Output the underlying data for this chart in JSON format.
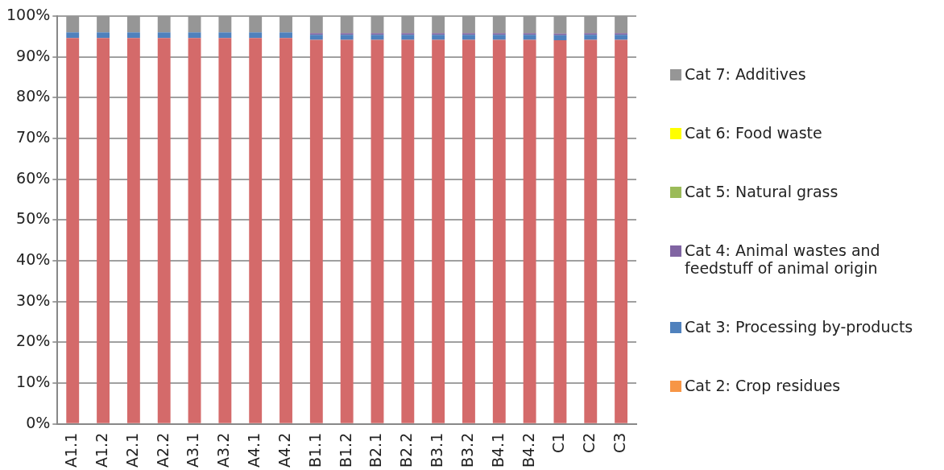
{
  "chart_data": {
    "type": "bar",
    "stacked": true,
    "categories": [
      "A1.1",
      "A1.2",
      "A2.1",
      "A2.2",
      "A3.1",
      "A3.2",
      "A4.1",
      "A4.2",
      "B1.1",
      "B1.2",
      "B2.1",
      "B2.2",
      "B3.1",
      "B3.2",
      "B4.1",
      "B4.2",
      "C1",
      "C2",
      "C3"
    ],
    "series": [
      {
        "color": "#d46a6a",
        "values": [
          94.6,
          94.6,
          94.6,
          94.6,
          94.6,
          94.6,
          94.6,
          94.6,
          94.2,
          94.2,
          94.2,
          94.2,
          94.2,
          94.2,
          94.2,
          94.2,
          94.1,
          94.2,
          94.2
        ]
      },
      {
        "name": "Cat 2: Crop residues",
        "color": "#f79646",
        "values": [
          0,
          0,
          0,
          0,
          0,
          0,
          0,
          0,
          0,
          0,
          0,
          0,
          0,
          0,
          0,
          0,
          0,
          0,
          0
        ]
      },
      {
        "name": "Cat 3: Processing by-products",
        "color": "#4f81bd",
        "values": [
          1.4,
          1.4,
          1.4,
          1.4,
          1.4,
          1.4,
          1.4,
          1.4,
          1.2,
          1.2,
          1.2,
          1.2,
          1.2,
          1.2,
          1.2,
          1.2,
          1.2,
          1.2,
          1.2
        ]
      },
      {
        "name": "Cat 4: Animal wastes and feedstuff of animal origin",
        "color": "#8064a2",
        "values": [
          0,
          0,
          0,
          0,
          0,
          0,
          0,
          0,
          0.4,
          0.4,
          0.4,
          0.4,
          0.4,
          0.4,
          0.4,
          0.4,
          0.4,
          0.4,
          0.4
        ]
      },
      {
        "name": "Cat 5: Natural grass",
        "color": "#9bbb59",
        "values": [
          0,
          0,
          0,
          0,
          0,
          0,
          0,
          0,
          0,
          0,
          0,
          0,
          0,
          0,
          0,
          0,
          0,
          0,
          0
        ]
      },
      {
        "name": "Cat 6: Food waste",
        "color": "#ffff00",
        "values": [
          0,
          0,
          0,
          0,
          0,
          0,
          0,
          0,
          0,
          0,
          0,
          0,
          0,
          0,
          0,
          0,
          0,
          0,
          0
        ]
      },
      {
        "name": "Cat 7: Additives",
        "color": "#969696",
        "values": [
          4.0,
          4.0,
          4.0,
          4.0,
          4.0,
          4.0,
          4.0,
          4.0,
          4.2,
          4.2,
          4.2,
          4.2,
          4.2,
          4.2,
          4.2,
          4.2,
          4.3,
          4.2,
          4.2
        ]
      }
    ],
    "ylim": [
      0,
      100
    ],
    "yticks": [
      {
        "value": 0,
        "label": "0%"
      },
      {
        "value": 10,
        "label": "10%"
      },
      {
        "value": 20,
        "label": "20%"
      },
      {
        "value": 30,
        "label": "30%"
      },
      {
        "value": 40,
        "label": "40%"
      },
      {
        "value": 50,
        "label": "50%"
      },
      {
        "value": 60,
        "label": "60%"
      },
      {
        "value": 70,
        "label": "70%"
      },
      {
        "value": 80,
        "label": "80%"
      },
      {
        "value": 90,
        "label": "90%"
      },
      {
        "value": 100,
        "label": "100%"
      }
    ],
    "grid": "y",
    "legend": "right"
  }
}
